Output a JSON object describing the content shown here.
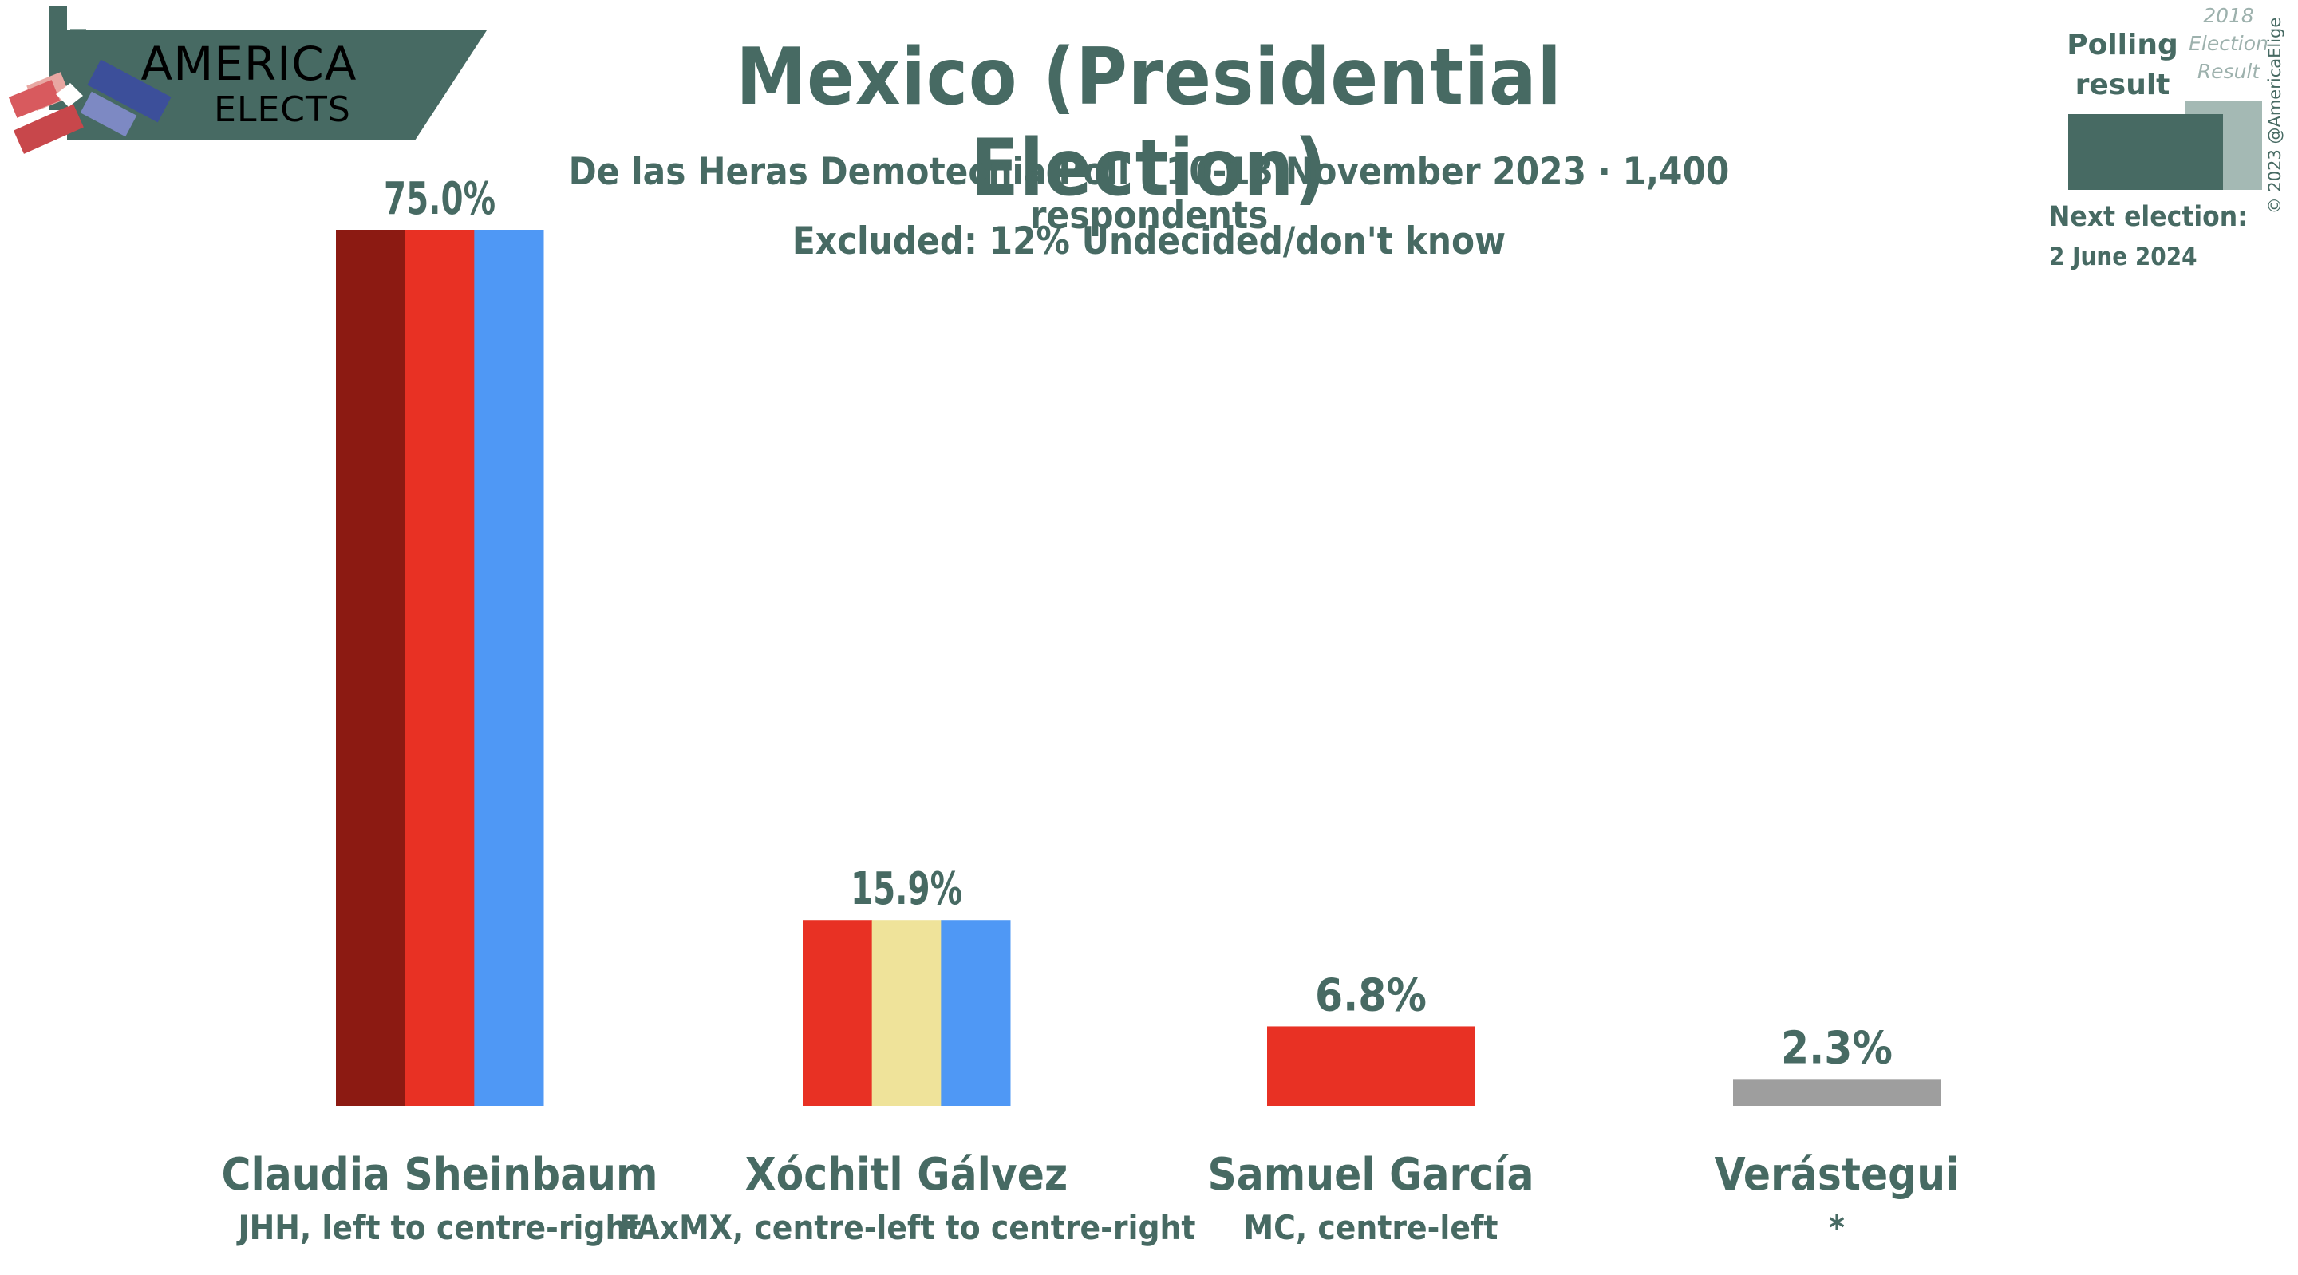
{
  "logo": {
    "line1": "AMERICA",
    "line2": "ELECTS"
  },
  "header": {
    "title": "Mexico (Presidential Election)",
    "subtitle": "De las Heras Demotecnia Poll · 10-13 November 2023 · 1,400 respondents",
    "excluded": "Excluded: 12% Undecided/don't know"
  },
  "legend": {
    "polling_line1": "Polling",
    "polling_line2": "result",
    "prev_line1": "2018",
    "prev_line2": "Election",
    "prev_line3": "Result",
    "next_label": "Next election:",
    "next_date": "2 June 2024",
    "copyright": "© 2023 @AmericaElige"
  },
  "colors": {
    "text": "#476a63",
    "morena_dark": "#8c1a12",
    "red": "#e83124",
    "blue": "#4f98f5",
    "yellow": "#efe39a",
    "grey": "#9e9e9e"
  },
  "chart_data": {
    "type": "bar",
    "title": "Mexico (Presidential Election)",
    "ylim": [
      0,
      75
    ],
    "categories": [
      "Claudia Sheinbaum",
      "Xóchitl Gálvez",
      "Samuel García",
      "Verástegui"
    ],
    "values": [
      75.0,
      15.9,
      6.8,
      2.3
    ],
    "value_labels": [
      "75.0%",
      "15.9%",
      "6.8%",
      "2.3%"
    ],
    "parties": [
      "JHH, left to centre-right",
      "FAxMX, centre-left to centre-right",
      "MC, centre-left",
      "*"
    ],
    "bar_colors": [
      [
        "#8c1a12",
        "#e83124",
        "#4f98f5"
      ],
      [
        "#e83124",
        "#efe39a",
        "#4f98f5"
      ],
      [
        "#e83124"
      ],
      [
        "#9e9e9e"
      ]
    ]
  }
}
